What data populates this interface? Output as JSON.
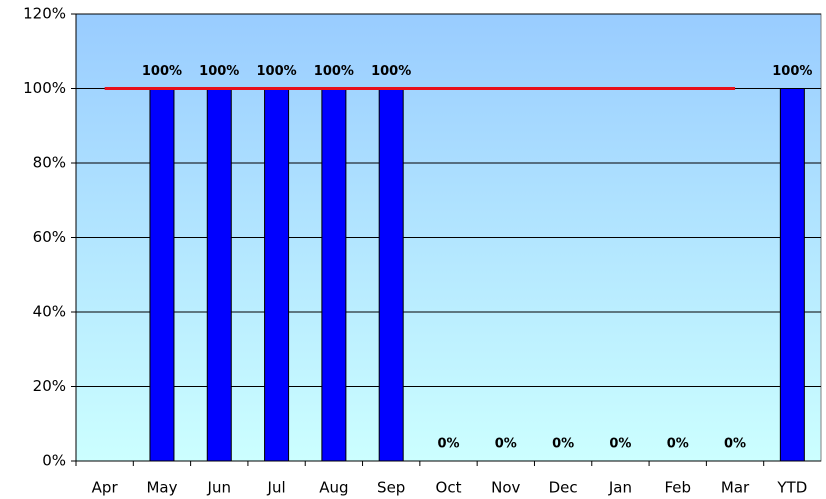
{
  "chart_data": {
    "type": "bar",
    "categories": [
      "Apr",
      "May",
      "Jun",
      "Jul",
      "Aug",
      "Sep",
      "Oct",
      "Nov",
      "Dec",
      "Jan",
      "Feb",
      "Mar",
      "YTD"
    ],
    "series": [
      {
        "type": "bar",
        "color": "#0000ff",
        "values": [
          null,
          100,
          100,
          100,
          100,
          100,
          0,
          0,
          0,
          0,
          0,
          0,
          100
        ],
        "value_labels": [
          null,
          "100%",
          "100%",
          "100%",
          "100%",
          "100%",
          "0%",
          "0%",
          "0%",
          "0%",
          "0%",
          "0%",
          "100%"
        ]
      },
      {
        "type": "line",
        "color": "#e8101a",
        "values": [
          100,
          100,
          100,
          100,
          100,
          100,
          100,
          100,
          100,
          100,
          100,
          100,
          null
        ]
      }
    ],
    "ylim": [
      0,
      120
    ],
    "yticks": [
      {
        "value": 0,
        "label": "0%"
      },
      {
        "value": 20,
        "label": "20%"
      },
      {
        "value": 40,
        "label": "40%"
      },
      {
        "value": 60,
        "label": "60%"
      },
      {
        "value": 80,
        "label": "80%"
      },
      {
        "value": 100,
        "label": "100%"
      },
      {
        "value": 120,
        "label": "120%"
      }
    ],
    "grid": true
  }
}
